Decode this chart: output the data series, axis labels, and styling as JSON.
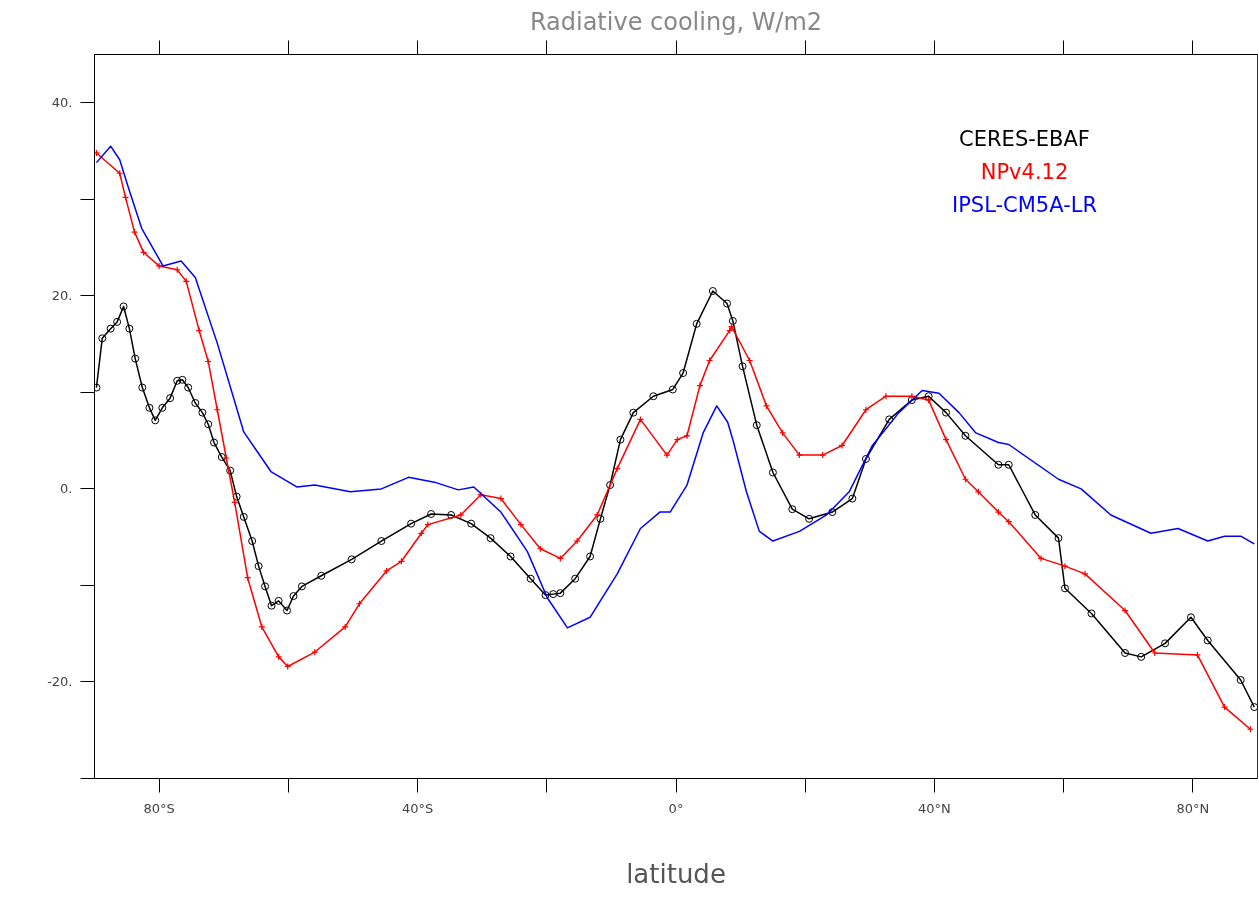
{
  "chart_data": {
    "type": "line",
    "title": "Radiative cooling, W/m2",
    "xlabel": "latitude",
    "xlim": [
      -90,
      90
    ],
    "ylim": [
      -30,
      45
    ],
    "xticks": [
      {
        "value": -80,
        "label": "80°S"
      },
      {
        "value": -60,
        "label": null
      },
      {
        "value": -40,
        "label": "40°S"
      },
      {
        "value": -20,
        "label": null
      },
      {
        "value": 0,
        "label": "0°"
      },
      {
        "value": 20,
        "label": null
      },
      {
        "value": 40,
        "label": "40°N"
      },
      {
        "value": 60,
        "label": null
      },
      {
        "value": 80,
        "label": "80°N"
      }
    ],
    "yticks": [
      {
        "value": -30,
        "label": null
      },
      {
        "value": -20,
        "label": "-20."
      },
      {
        "value": -10,
        "label": null
      },
      {
        "value": 0,
        "label": "0."
      },
      {
        "value": 10,
        "label": null
      },
      {
        "value": 20,
        "label": "20."
      },
      {
        "value": 30,
        "label": null
      },
      {
        "value": 40,
        "label": "40."
      }
    ],
    "grid": false,
    "series": [
      {
        "name": "CERES-EBAF",
        "color": "#000000",
        "marker": "circle",
        "x": [
          -89.7,
          -88.8,
          -87.5,
          -86.5,
          -85.5,
          -84.6,
          -83.7,
          -82.6,
          -81.5,
          -80.6,
          -79.5,
          -78.3,
          -77.2,
          -76.4,
          -75.5,
          -74.4,
          -73.3,
          -72.4,
          -71.5,
          -70.3,
          -69.0,
          -68.0,
          -66.9,
          -65.6,
          -64.6,
          -63.6,
          -62.6,
          -61.5,
          -60.2,
          -59.2,
          -57.9,
          -54.9,
          -50.2,
          -45.6,
          -41.0,
          -37.9,
          -34.8,
          -31.7,
          -28.7,
          -25.6,
          -22.5,
          -20.2,
          -19.0,
          -17.9,
          -15.6,
          -13.3,
          -11.7,
          -10.2,
          -8.6,
          -6.6,
          -3.5,
          -0.5,
          1.1,
          3.2,
          5.7,
          7.9,
          8.8,
          10.3,
          12.5,
          15.0,
          18.0,
          20.6,
          24.2,
          27.3,
          29.4,
          33.0,
          36.5,
          39.1,
          41.8,
          44.8,
          49.9,
          51.5,
          55.6,
          59.2,
          60.2,
          64.3,
          69.5,
          72.0,
          75.7,
          79.7,
          82.3,
          87.4,
          89.5
        ],
        "values": [
          10.5,
          15.6,
          16.6,
          17.3,
          18.9,
          16.6,
          13.5,
          10.5,
          8.4,
          7.1,
          8.4,
          9.4,
          11.2,
          11.3,
          10.5,
          8.9,
          7.9,
          6.7,
          4.8,
          3.3,
          1.9,
          -0.8,
          -2.9,
          -5.4,
          -8.0,
          -10.1,
          -12.1,
          -11.6,
          -12.6,
          -11.1,
          -10.1,
          -9.0,
          -7.3,
          -5.4,
          -3.6,
          -2.6,
          -2.7,
          -3.6,
          -5.1,
          -7.0,
          -9.3,
          -11.0,
          -10.9,
          -10.8,
          -9.3,
          -7.0,
          -3.1,
          0.4,
          5.1,
          7.9,
          9.6,
          10.3,
          12.0,
          17.1,
          20.5,
          19.2,
          17.4,
          12.7,
          6.6,
          1.7,
          -2.1,
          -3.1,
          -2.4,
          -1.0,
          3.1,
          7.2,
          9.2,
          9.6,
          7.9,
          5.5,
          2.5,
          2.5,
          -2.7,
          -5.1,
          -10.3,
          -12.9,
          -17.0,
          -17.4,
          -16.0,
          -13.3,
          -15.7,
          -19.8,
          -22.6
        ]
      },
      {
        "name": "NPv4.12",
        "color": "#ff0000",
        "marker": "cross",
        "x": [
          -89.7,
          -86.1,
          -85.2,
          -83.8,
          -82.4,
          -80.0,
          -77.2,
          -75.8,
          -73.8,
          -72.4,
          -71.0,
          -69.6,
          -68.3,
          -66.3,
          -64.1,
          -61.5,
          -60.1,
          -55.9,
          -51.2,
          -49.0,
          -44.8,
          -42.5,
          -39.4,
          -38.4,
          -33.3,
          -30.2,
          -27.1,
          -24.0,
          -21.0,
          -17.9,
          -15.3,
          -12.2,
          -9.1,
          -5.5,
          -1.4,
          0.2,
          1.7,
          3.7,
          5.2,
          8.3,
          8.6,
          11.4,
          14.0,
          16.5,
          19.1,
          22.7,
          25.7,
          29.4,
          32.5,
          36.5,
          39.1,
          41.8,
          44.8,
          46.8,
          49.9,
          51.5,
          56.5,
          60.2,
          63.3,
          69.5,
          74.1,
          80.7,
          84.9,
          88.9
        ],
        "values": [
          34.8,
          32.7,
          30.2,
          26.6,
          24.5,
          23.1,
          22.7,
          21.5,
          16.4,
          13.2,
          8.2,
          3.2,
          -1.4,
          -9.2,
          -14.3,
          -17.4,
          -18.4,
          -16.9,
          -14.3,
          -11.9,
          -8.5,
          -7.5,
          -4.6,
          -3.7,
          -2.7,
          -0.6,
          -1.0,
          -3.7,
          -6.2,
          -7.2,
          -5.4,
          -2.7,
          2.1,
          7.2,
          3.5,
          5.1,
          5.5,
          10.7,
          13.3,
          16.4,
          16.8,
          13.3,
          8.6,
          5.8,
          3.5,
          3.5,
          4.5,
          8.2,
          9.6,
          9.6,
          9.2,
          5.1,
          1.0,
          -0.3,
          -2.4,
          -3.4,
          -7.2,
          -8.0,
          -8.8,
          -12.6,
          -17.0,
          -17.2,
          -22.6,
          -24.9
        ]
      },
      {
        "name": "IPSL-CM5A-LR",
        "color": "#0000ff",
        "marker": "none",
        "x": [
          -89.7,
          -87.5,
          -86.1,
          -84.7,
          -82.7,
          -79.4,
          -76.6,
          -74.4,
          -71.0,
          -66.9,
          -62.7,
          -58.7,
          -55.9,
          -50.4,
          -45.6,
          -41.4,
          -37.4,
          -33.7,
          -31.3,
          -27.1,
          -23.0,
          -19.9,
          -16.8,
          -13.3,
          -9.1,
          -5.5,
          -2.5,
          -0.9,
          1.7,
          4.2,
          6.3,
          8.0,
          8.8,
          10.9,
          12.9,
          15.0,
          19.1,
          23.3,
          26.8,
          30.4,
          34.5,
          38.1,
          40.7,
          43.8,
          46.4,
          49.9,
          51.5,
          59.2,
          62.7,
          67.3,
          73.5,
          77.7,
          82.3,
          84.9,
          87.4,
          89.5
        ],
        "values": [
          33.8,
          35.5,
          34.1,
          31.1,
          27.0,
          23.1,
          23.6,
          21.9,
          15.1,
          5.9,
          1.8,
          0.2,
          0.4,
          -0.3,
          0.0,
          1.2,
          0.7,
          -0.1,
          0.2,
          -2.4,
          -6.5,
          -11.3,
          -14.4,
          -13.3,
          -8.8,
          -4.1,
          -2.4,
          -2.4,
          0.4,
          5.8,
          8.6,
          6.9,
          5.1,
          -0.3,
          -4.4,
          -5.4,
          -4.4,
          -2.7,
          -0.3,
          4.5,
          7.9,
          10.2,
          9.9,
          7.9,
          5.8,
          4.8,
          4.6,
          1.0,
          0.0,
          -2.7,
          -4.6,
          -4.1,
          -5.4,
          -4.9,
          -4.9,
          -5.7
        ]
      }
    ]
  }
}
